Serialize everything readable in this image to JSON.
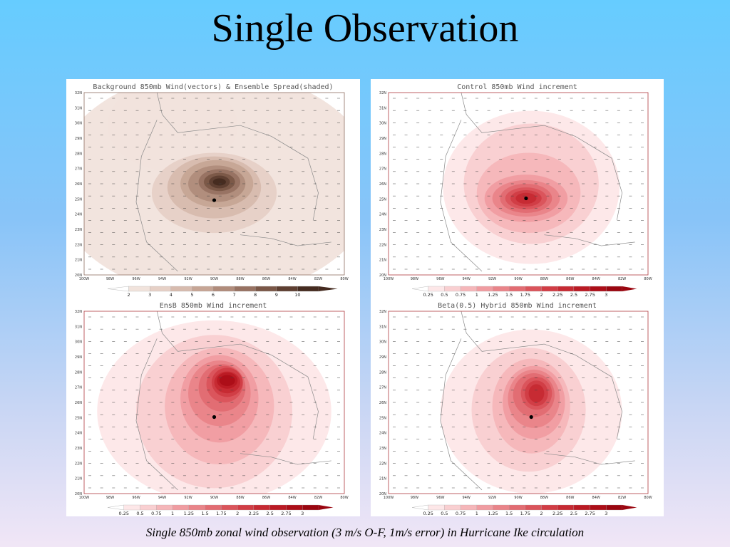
{
  "slide": {
    "title": "Single Observation",
    "caption": "Single 850mb zonal wind observation (3 m/s O-F, 1m/s error) in Hurricane Ike circulation"
  },
  "map_axes": {
    "lat_labels": [
      "32N",
      "31N",
      "30N",
      "29N",
      "28N",
      "27N",
      "26N",
      "25N",
      "24N",
      "23N",
      "22N",
      "21N",
      "20N"
    ],
    "lon_labels": [
      "100W",
      "98W",
      "96W",
      "94W",
      "92W",
      "90W",
      "88W",
      "86W",
      "84W",
      "82W",
      "80W"
    ]
  },
  "panels": [
    {
      "id": "background",
      "title": "Background 850mb Wind(vectors) & Ensemble Spread(shaded)",
      "palette": "brown",
      "legend_labels": [
        "2",
        "3",
        "4",
        "5",
        "6",
        "7",
        "8",
        "9",
        "10"
      ],
      "colors": [
        "#f1e3dc",
        "#e6d0c6",
        "#d7bbae",
        "#c6a595",
        "#b08c7b",
        "#977262",
        "#7a5747",
        "#5e3f31",
        "#452b20"
      ]
    },
    {
      "id": "control",
      "title": "Control 850mb Wind increment",
      "palette": "red",
      "legend_labels": [
        "0.25",
        "0.5",
        "0.75",
        "1",
        "1.25",
        "1.5",
        "1.75",
        "2",
        "2.25",
        "2.5",
        "2.75",
        "3"
      ],
      "colors": [
        "#fde7e8",
        "#f9cfd1",
        "#f5b6b9",
        "#f09ca1",
        "#e98489",
        "#e26c72",
        "#da545b",
        "#d13d45",
        "#c62a33",
        "#ba1a24",
        "#ac0e18",
        "#9a0610"
      ]
    },
    {
      "id": "ensb",
      "title": "EnsB 850mb Wind increment",
      "palette": "red",
      "legend_labels": [
        "0.25",
        "0.5",
        "0.75",
        "1",
        "1.25",
        "1.5",
        "1.75",
        "2",
        "2.25",
        "2.5",
        "2.75",
        "3"
      ],
      "colors": [
        "#fde7e8",
        "#f9cfd1",
        "#f5b6b9",
        "#f09ca1",
        "#e98489",
        "#e26c72",
        "#da545b",
        "#d13d45",
        "#c62a33",
        "#ba1a24",
        "#ac0e18",
        "#9a0610"
      ]
    },
    {
      "id": "hybrid",
      "title": "Beta(0.5) Hybrid 850mb Wind increment",
      "palette": "red",
      "legend_labels": [
        "0.25",
        "0.5",
        "0.75",
        "1",
        "1.25",
        "1.5",
        "1.75",
        "2",
        "2.25",
        "2.5",
        "2.75",
        "3"
      ],
      "colors": [
        "#fde7e8",
        "#f9cfd1",
        "#f5b6b9",
        "#f09ca1",
        "#e98489",
        "#e26c72",
        "#da545b",
        "#d13d45",
        "#c62a33",
        "#ba1a24",
        "#ac0e18",
        "#9a0610"
      ]
    }
  ]
}
